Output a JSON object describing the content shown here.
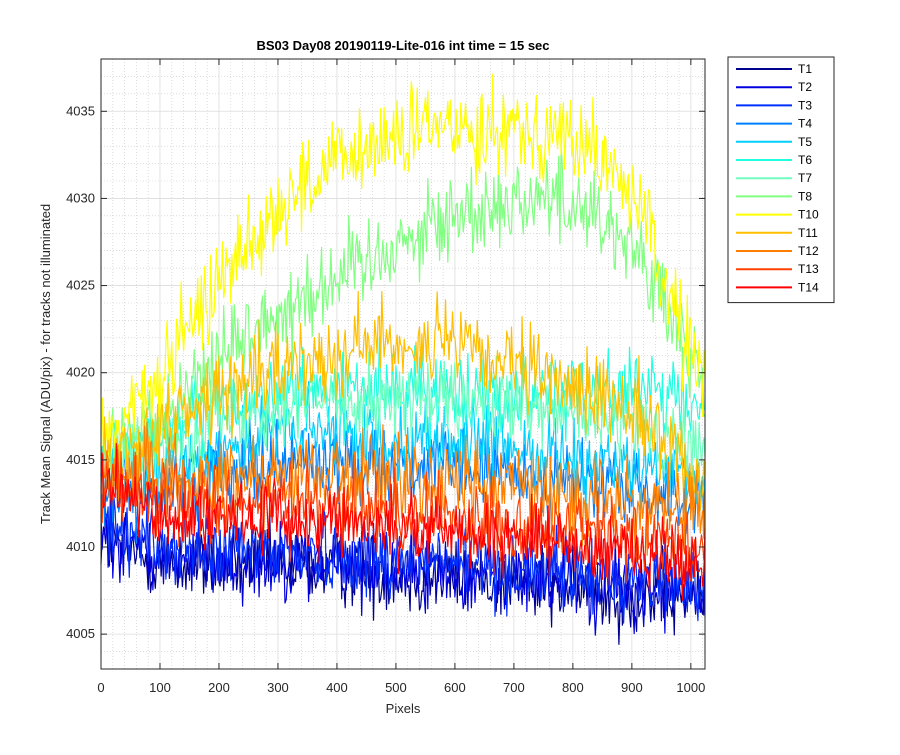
{
  "chart_data": {
    "type": "line",
    "title": "BS03 Day08 20190119-Lite-016 int time = 15 sec",
    "xlabel": "Pixels",
    "ylabel": "Track Mean Signal (ADU/pix) - for tracks not illuminated",
    "xlim": [
      0,
      1024
    ],
    "ylim": [
      4003,
      4038
    ],
    "x_ticks": [
      0,
      100,
      200,
      300,
      400,
      500,
      600,
      700,
      800,
      900,
      1000
    ],
    "y_ticks": [
      4005,
      4010,
      4015,
      4020,
      4025,
      4030,
      4035
    ],
    "grid": true,
    "minor_grid": true,
    "legend_position": "outside-top-right",
    "series": [
      {
        "name": "T1",
        "color": "#00008f",
        "x": [
          0,
          100,
          200,
          300,
          400,
          500,
          600,
          700,
          800,
          900,
          1024
        ],
        "y": [
          4010.5,
          4009.0,
          4009.0,
          4009.0,
          4008.8,
          4008.5,
          4008.3,
          4008.0,
          4007.6,
          4007.2,
          4007.0
        ],
        "noise": 1.1
      },
      {
        "name": "T2",
        "color": "#0000df",
        "x": [
          0,
          100,
          200,
          300,
          400,
          500,
          600,
          700,
          800,
          900,
          1024
        ],
        "y": [
          4011.0,
          4009.3,
          4009.3,
          4009.2,
          4009.0,
          4008.8,
          4008.5,
          4008.2,
          4007.9,
          4007.5,
          4007.2
        ],
        "noise": 1.1
      },
      {
        "name": "T3",
        "color": "#0030ff",
        "x": [
          0,
          100,
          200,
          300,
          400,
          500,
          600,
          700,
          800,
          900,
          1024
        ],
        "y": [
          4012.0,
          4010.0,
          4009.8,
          4009.8,
          4009.6,
          4009.4,
          4009.1,
          4008.8,
          4008.5,
          4008.2,
          4008.0
        ],
        "noise": 1.1
      },
      {
        "name": "T4",
        "color": "#0080ff",
        "x": [
          0,
          100,
          200,
          300,
          400,
          500,
          600,
          700,
          800,
          900,
          1024
        ],
        "y": [
          4013.0,
          4013.5,
          4014.5,
          4015.0,
          4015.0,
          4014.8,
          4014.5,
          4014.2,
          4013.8,
          4013.2,
          4012.5
        ],
        "noise": 1.1
      },
      {
        "name": "T5",
        "color": "#00cfff",
        "x": [
          0,
          100,
          200,
          300,
          400,
          500,
          600,
          700,
          800,
          900,
          1024
        ],
        "y": [
          4013.5,
          4014.5,
          4015.8,
          4016.5,
          4016.5,
          4016.3,
          4016.0,
          4015.7,
          4015.2,
          4014.5,
          4013.5
        ],
        "noise": 1.1
      },
      {
        "name": "T6",
        "color": "#20ffdf",
        "x": [
          0,
          100,
          200,
          300,
          400,
          500,
          600,
          700,
          800,
          900,
          1024
        ],
        "y": [
          4015.0,
          4016.5,
          4018.0,
          4018.8,
          4019.0,
          4019.0,
          4019.0,
          4019.0,
          4019.0,
          4019.0,
          4018.0
        ],
        "noise": 1.1
      },
      {
        "name": "T7",
        "color": "#70ffbf",
        "x": [
          0,
          100,
          200,
          300,
          400,
          500,
          600,
          700,
          800,
          900,
          1024
        ],
        "y": [
          4015.0,
          4016.0,
          4017.5,
          4018.2,
          4018.5,
          4018.5,
          4018.3,
          4018.0,
          4017.5,
          4016.8,
          4015.5
        ],
        "noise": 1.1
      },
      {
        "name": "T8",
        "color": "#80ff80",
        "x": [
          0,
          100,
          200,
          300,
          400,
          500,
          600,
          700,
          800,
          900,
          1024
        ],
        "y": [
          4015.0,
          4017.5,
          4021.0,
          4023.5,
          4025.5,
          4027.5,
          4029.0,
          4030.0,
          4030.0,
          4027.5,
          4019.0
        ],
        "noise": 1.3
      },
      {
        "name": "T10",
        "color": "#ffff00",
        "x": [
          0,
          100,
          200,
          300,
          400,
          500,
          600,
          700,
          800,
          900,
          1024
        ],
        "y": [
          4016.0,
          4019.5,
          4025.5,
          4029.5,
          4032.0,
          4033.5,
          4034.2,
          4034.2,
          4033.5,
          4030.5,
          4019.0
        ],
        "noise": 1.3
      },
      {
        "name": "T11",
        "color": "#ffbf00",
        "x": [
          0,
          100,
          200,
          300,
          400,
          500,
          600,
          700,
          800,
          900,
          1024
        ],
        "y": [
          4015.0,
          4016.8,
          4018.8,
          4020.2,
          4021.3,
          4021.8,
          4021.5,
          4020.2,
          4019.2,
          4018.0,
          4013.5
        ],
        "noise": 1.2
      },
      {
        "name": "T12",
        "color": "#ff8000",
        "x": [
          0,
          100,
          200,
          300,
          400,
          500,
          600,
          700,
          800,
          900,
          1024
        ],
        "y": [
          4014.5,
          4013.8,
          4014.0,
          4014.2,
          4014.2,
          4014.0,
          4013.8,
          4013.5,
          4013.0,
          4012.5,
          4012.0
        ],
        "noise": 1.2
      },
      {
        "name": "T13",
        "color": "#ff4000",
        "x": [
          0,
          100,
          200,
          300,
          400,
          500,
          600,
          700,
          800,
          900,
          1024
        ],
        "y": [
          4014.0,
          4012.5,
          4012.5,
          4012.5,
          4012.3,
          4012.0,
          4011.7,
          4011.3,
          4011.0,
          4010.6,
          4010.0
        ],
        "noise": 1.1
      },
      {
        "name": "T14",
        "color": "#ff0000",
        "x": [
          0,
          100,
          200,
          300,
          400,
          500,
          600,
          700,
          800,
          900,
          1024
        ],
        "y": [
          4013.5,
          4011.8,
          4011.8,
          4011.7,
          4011.5,
          4011.2,
          4011.0,
          4010.6,
          4010.3,
          4009.8,
          4009.3
        ],
        "noise": 1.0
      }
    ]
  }
}
